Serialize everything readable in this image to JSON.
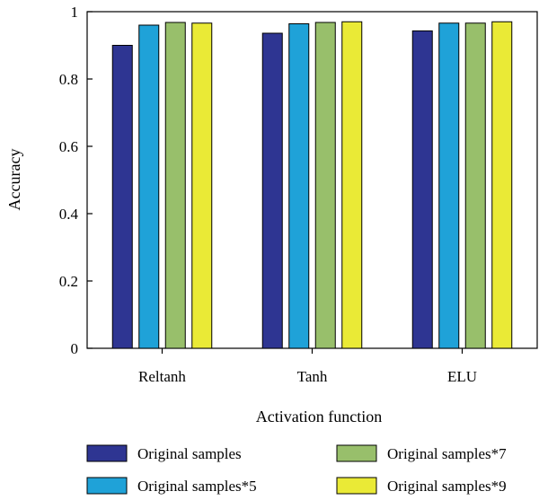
{
  "chart_data": {
    "type": "bar",
    "title": "",
    "xlabel": "Activation function",
    "ylabel": "Accuracy",
    "ylim": [
      0,
      1
    ],
    "yticks": [
      "0",
      "0.2",
      "0.4",
      "0.6",
      "0.8",
      "1"
    ],
    "categories": [
      "Reltanh",
      "Tanh",
      "ELU"
    ],
    "series": [
      {
        "name": "Original samples",
        "color": "#2e3592",
        "values": [
          0.9,
          0.936,
          0.943
        ]
      },
      {
        "name": "Original samples*5",
        "color": "#1fa2d8",
        "values": [
          0.96,
          0.964,
          0.966
        ]
      },
      {
        "name": "Original samples*7",
        "color": "#98bf6b",
        "values": [
          0.968,
          0.968,
          0.966
        ]
      },
      {
        "name": "Original samples*9",
        "color": "#eaea36",
        "values": [
          0.966,
          0.97,
          0.97
        ]
      }
    ],
    "grid": false,
    "legend_position": "bottom"
  }
}
